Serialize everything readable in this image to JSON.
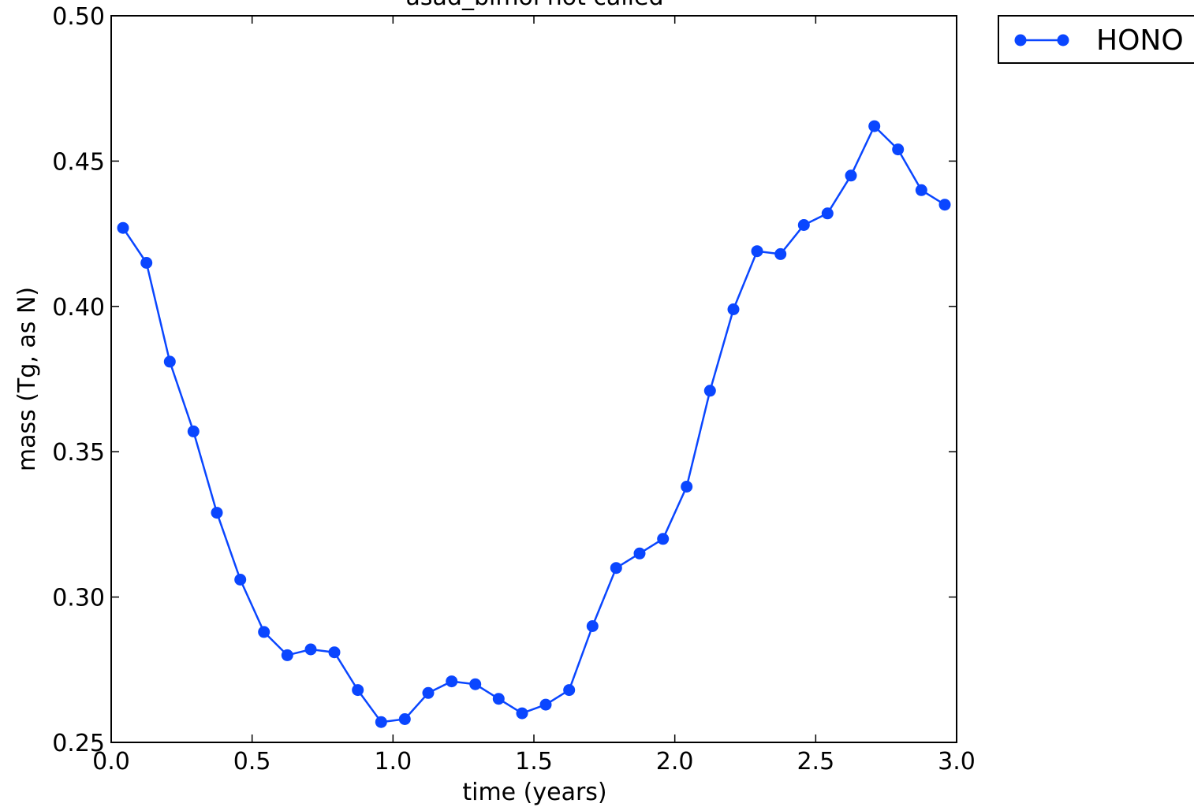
{
  "chart_data": {
    "type": "line",
    "title": "asad_bimol not called",
    "xlabel": "time (years)",
    "ylabel": "mass (Tg, as N)",
    "xlim": [
      0.0,
      3.0
    ],
    "ylim": [
      0.25,
      0.5
    ],
    "xticks": [
      0.0,
      0.5,
      1.0,
      1.5,
      2.0,
      2.5,
      3.0
    ],
    "xtick_labels": [
      "0.0",
      "0.5",
      "1.0",
      "1.5",
      "2.0",
      "2.5",
      "3.0"
    ],
    "yticks": [
      0.25,
      0.3,
      0.35,
      0.4,
      0.45,
      0.5
    ],
    "ytick_labels": [
      "0.25",
      "0.30",
      "0.35",
      "0.40",
      "0.45",
      "0.50"
    ],
    "grid": false,
    "legend_position": "outside-top-right",
    "series": [
      {
        "name": "HONO",
        "color": "#0a46ff",
        "marker": "circle",
        "x": [
          0.042,
          0.125,
          0.208,
          0.292,
          0.375,
          0.458,
          0.542,
          0.625,
          0.708,
          0.792,
          0.875,
          0.958,
          1.042,
          1.125,
          1.208,
          1.292,
          1.375,
          1.458,
          1.542,
          1.625,
          1.708,
          1.792,
          1.875,
          1.958,
          2.042,
          2.125,
          2.208,
          2.292,
          2.375,
          2.458,
          2.542,
          2.625,
          2.708,
          2.792,
          2.875,
          2.958
        ],
        "y": [
          0.427,
          0.415,
          0.381,
          0.357,
          0.329,
          0.306,
          0.288,
          0.28,
          0.282,
          0.281,
          0.268,
          0.257,
          0.258,
          0.267,
          0.271,
          0.27,
          0.265,
          0.26,
          0.263,
          0.268,
          0.29,
          0.31,
          0.315,
          0.32,
          0.338,
          0.371,
          0.399,
          0.419,
          0.418,
          0.428,
          0.432,
          0.445,
          0.462,
          0.454,
          0.44,
          0.435
        ]
      }
    ]
  }
}
